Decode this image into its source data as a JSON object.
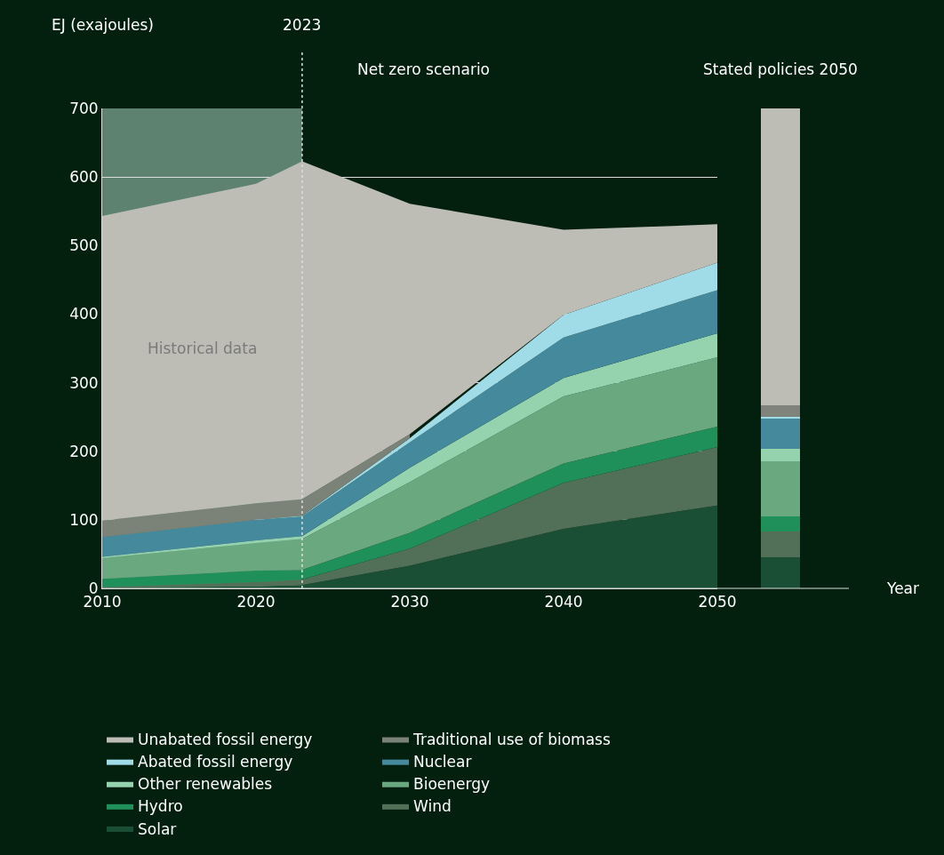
{
  "chart_data": [
    {
      "type": "area",
      "stacked": true,
      "title": "Net zero scenario",
      "ylabel": "EJ (exajoules)",
      "x": [
        2010,
        2020,
        2023,
        2030,
        2040,
        2050
      ],
      "xlim": [
        2010,
        2050
      ],
      "xticks": [
        2010,
        2020,
        2030,
        2040,
        2050
      ],
      "ylim": [
        0,
        700
      ],
      "yticks": [
        0,
        100,
        200,
        300,
        400,
        500,
        600,
        700
      ],
      "grid": "y",
      "legend": "bottom",
      "ref_lines": [
        {
          "axis": "x",
          "value": 2023,
          "label": "2023",
          "color": "#dddddd",
          "line_style": "dotted"
        }
      ],
      "bands": [
        {
          "axis": "x",
          "from": 2010,
          "to": 2023,
          "label": "Historical data",
          "color": "#5d8270"
        }
      ],
      "series": [
        {
          "name": "Solar",
          "color": "#1b4f35",
          "values": [
            1,
            3,
            5,
            33,
            87,
            121
          ]
        },
        {
          "name": "Wind",
          "color": "#526f58",
          "values": [
            1,
            6,
            8,
            25,
            67,
            85
          ]
        },
        {
          "name": "Hydro",
          "color": "#1f9059",
          "values": [
            12,
            17,
            14,
            23,
            28,
            30
          ]
        },
        {
          "name": "Bioenergy",
          "color": "#6aa880",
          "values": [
            30,
            40,
            45,
            74,
            98,
            101
          ]
        },
        {
          "name": "Other renewables",
          "color": "#95d2ae",
          "values": [
            2,
            4,
            4,
            21,
            27,
            35
          ]
        },
        {
          "name": "Nuclear",
          "color": "#448a9c",
          "values": [
            29,
            30,
            29,
            37,
            59,
            63
          ]
        },
        {
          "name": "Abated fossil energy",
          "color": "#a0dbe8",
          "values": [
            0,
            0,
            1,
            6,
            33,
            40
          ]
        },
        {
          "name": "Traditional use of biomass",
          "color": "#7b8277",
          "values": [
            24,
            24,
            24,
            6,
            null,
            null
          ]
        },
        {
          "name": "Unabated fossil energy",
          "color": "#bdbdb6",
          "values": [
            444,
            466,
            493,
            336,
            124,
            56
          ]
        }
      ]
    },
    {
      "type": "bar",
      "stacked": true,
      "title": "Stated policies 2050",
      "xlabel": "Year",
      "categories": [
        null
      ],
      "ylim": [
        0,
        700
      ],
      "tick_labels": false,
      "series": [
        {
          "color": "#1b4f35",
          "values": [
            45
          ]
        },
        {
          "color": "#526f58",
          "values": [
            38
          ]
        },
        {
          "color": "#1f9059",
          "values": [
            22
          ]
        },
        {
          "color": "#6aa880",
          "values": [
            80
          ]
        },
        {
          "color": "#95d2ae",
          "values": [
            18
          ]
        },
        {
          "color": "#448a9c",
          "values": [
            44
          ]
        },
        {
          "color": "#a0dbe8",
          "values": [
            3
          ]
        },
        {
          "color": "#80827c",
          "values": [
            17
          ]
        },
        {
          "color": "#bdbdb6",
          "values": [
            433
          ]
        }
      ]
    }
  ]
}
